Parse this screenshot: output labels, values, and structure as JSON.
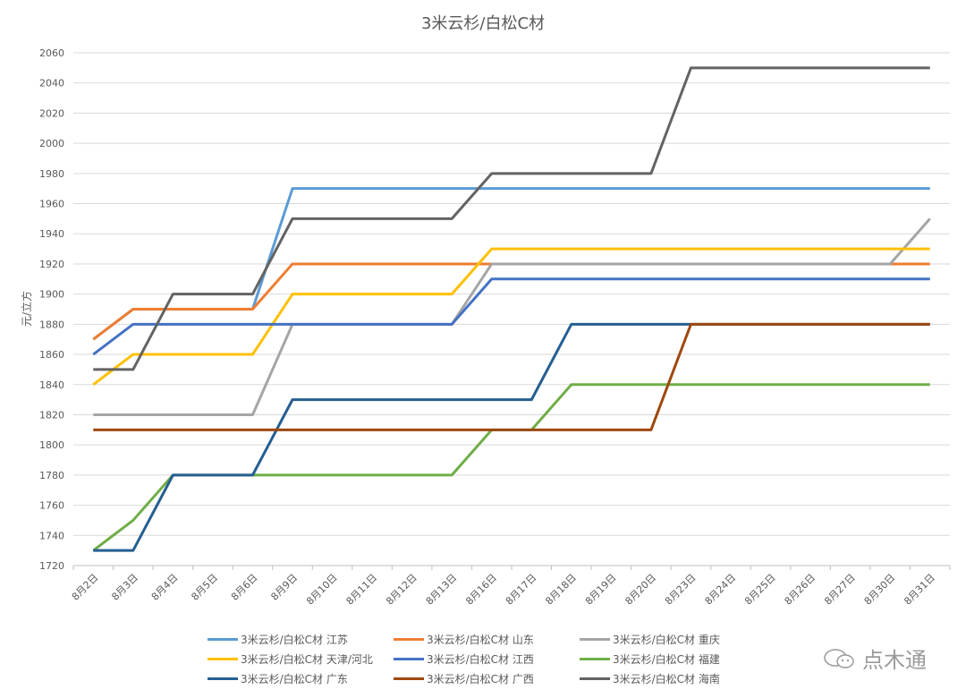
{
  "chart_data": {
    "type": "line",
    "title": "3米云杉/白松C材",
    "xlabel": "",
    "ylabel": "元/立方",
    "ylim": [
      1720,
      2060
    ],
    "yticks": [
      1720,
      1740,
      1760,
      1780,
      1800,
      1820,
      1840,
      1860,
      1880,
      1900,
      1920,
      1940,
      1960,
      1980,
      2000,
      2020,
      2040,
      2060
    ],
    "grid": true,
    "legend_position": "bottom",
    "categories": [
      "8月2日",
      "8月3日",
      "8月4日",
      "8月5日",
      "8月6日",
      "8月9日",
      "8月10日",
      "8月11日",
      "8月12日",
      "8月13日",
      "8月16日",
      "8月17日",
      "8月18日",
      "8月19日",
      "8月20日",
      "8月23日",
      "8月24日",
      "8月25日",
      "8月26日",
      "8月27日",
      "8月30日",
      "8月31日"
    ],
    "series": [
      {
        "name": "3米云杉/白松C材 江苏",
        "color": "#5B9BD5",
        "values": [
          1870,
          1890,
          1890,
          1890,
          1890,
          1970,
          1970,
          1970,
          1970,
          1970,
          1970,
          1970,
          1970,
          1970,
          1970,
          1970,
          1970,
          1970,
          1970,
          1970,
          1970,
          1970
        ]
      },
      {
        "name": "3米云杉/白松C材 山东",
        "color": "#ED7D31",
        "values": [
          1870,
          1890,
          1890,
          1890,
          1890,
          1920,
          1920,
          1920,
          1920,
          1920,
          1920,
          1920,
          1920,
          1920,
          1920,
          1920,
          1920,
          1920,
          1920,
          1920,
          1920,
          1920
        ]
      },
      {
        "name": "3米云杉/白松C材 重庆",
        "color": "#A5A5A5",
        "values": [
          1820,
          1820,
          1820,
          1820,
          1820,
          1880,
          1880,
          1880,
          1880,
          1880,
          1920,
          1920,
          1920,
          1920,
          1920,
          1920,
          1920,
          1920,
          1920,
          1920,
          1920,
          1950
        ]
      },
      {
        "name": "3米云杉/白松C材 天津/河北",
        "color": "#FFC000",
        "values": [
          1840,
          1860,
          1860,
          1860,
          1860,
          1900,
          1900,
          1900,
          1900,
          1900,
          1930,
          1930,
          1930,
          1930,
          1930,
          1930,
          1930,
          1930,
          1930,
          1930,
          1930,
          1930
        ]
      },
      {
        "name": "3米云杉/白松C材 江西",
        "color": "#4472C4",
        "values": [
          1860,
          1880,
          1880,
          1880,
          1880,
          1880,
          1880,
          1880,
          1880,
          1880,
          1910,
          1910,
          1910,
          1910,
          1910,
          1910,
          1910,
          1910,
          1910,
          1910,
          1910,
          1910
        ]
      },
      {
        "name": "3米云杉/白松C材 福建",
        "color": "#70AD47",
        "values": [
          1730,
          1750,
          1780,
          1780,
          1780,
          1780,
          1780,
          1780,
          1780,
          1780,
          1810,
          1810,
          1840,
          1840,
          1840,
          1840,
          1840,
          1840,
          1840,
          1840,
          1840,
          1840
        ]
      },
      {
        "name": "3米云杉/白松C材 广东",
        "color": "#255E91",
        "values": [
          1730,
          1730,
          1780,
          1780,
          1780,
          1830,
          1830,
          1830,
          1830,
          1830,
          1830,
          1830,
          1880,
          1880,
          1880,
          1880,
          1880,
          1880,
          1880,
          1880,
          1880,
          1880
        ]
      },
      {
        "name": "3米云杉/白松C材 广西",
        "color": "#9E480E",
        "values": [
          1810,
          1810,
          1810,
          1810,
          1810,
          1810,
          1810,
          1810,
          1810,
          1810,
          1810,
          1810,
          1810,
          1810,
          1810,
          1880,
          1880,
          1880,
          1880,
          1880,
          1880,
          1880
        ]
      },
      {
        "name": "3米云杉/白松C材 海南",
        "color": "#636363",
        "values": [
          1850,
          1850,
          1900,
          1900,
          1900,
          1950,
          1950,
          1950,
          1950,
          1950,
          1980,
          1980,
          1980,
          1980,
          1980,
          2050,
          2050,
          2050,
          2050,
          2050,
          2050,
          2050
        ]
      }
    ]
  },
  "watermark": {
    "text": "点木通",
    "icon": "wechat-icon"
  }
}
